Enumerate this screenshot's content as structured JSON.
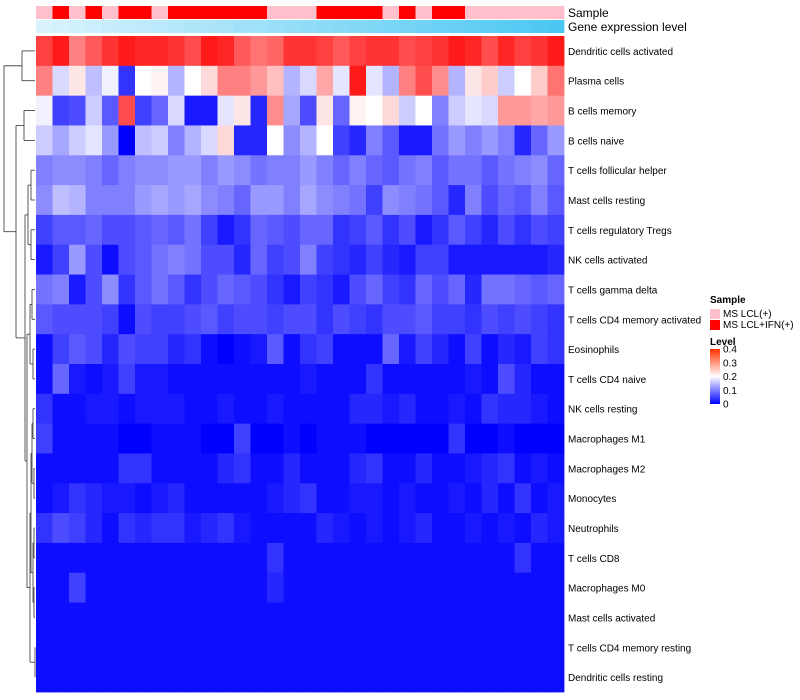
{
  "chart_data": {
    "type": "heatmap",
    "annotation_labels": {
      "sample": "Sample",
      "expression": "Gene expression level"
    },
    "rows": [
      "Dendritic cells activated",
      "Plasma cells",
      "B cells memory",
      "B cells naive",
      "T cells follicular helper",
      "Mast cells resting",
      "T cells regulatory  Tregs",
      "NK cells activated",
      "T cells gamma delta",
      "T cells CD4 memory activated",
      "Eosinophils",
      "T cells CD4 naive",
      "NK cells resting",
      "Macrophages M1",
      "Macrophages M2",
      "Monocytes",
      "Neutrophils",
      "T cells CD8",
      "Macrophages M0",
      "Mast cells activated",
      "T cells CD4 memory resting",
      "Dendritic cells resting"
    ],
    "sample_groups": [
      0,
      1,
      0,
      1,
      0,
      1,
      1,
      0,
      1,
      1,
      1,
      1,
      1,
      1,
      0,
      0,
      0,
      1,
      1,
      1,
      1,
      0,
      1,
      0,
      1,
      1,
      0,
      0,
      0,
      0,
      0,
      0
    ],
    "values": [
      [
        0.35,
        0.38,
        0.3,
        0.33,
        0.36,
        0.38,
        0.37,
        0.37,
        0.36,
        0.34,
        0.38,
        0.37,
        0.33,
        0.31,
        0.32,
        0.36,
        0.36,
        0.35,
        0.33,
        0.35,
        0.36,
        0.36,
        0.34,
        0.35,
        0.36,
        0.38,
        0.37,
        0.34,
        0.37,
        0.35,
        0.36,
        0.38
      ],
      [
        0.3,
        0.17,
        0.22,
        0.15,
        0.19,
        0.04,
        0.2,
        0.21,
        0.14,
        0.2,
        0.23,
        0.3,
        0.3,
        0.28,
        0.25,
        0.14,
        0.17,
        0.27,
        0.18,
        0.38,
        0.18,
        0.14,
        0.3,
        0.34,
        0.29,
        0.14,
        0.22,
        0.24,
        0.16,
        0.2,
        0.24,
        0.31
      ],
      [
        0.19,
        0.05,
        0.06,
        0.16,
        0.07,
        0.34,
        0.05,
        0.08,
        0.17,
        0.02,
        0.02,
        0.18,
        0.22,
        0.03,
        0.29,
        0.13,
        0.06,
        0.22,
        0.08,
        0.21,
        0.2,
        0.23,
        0.16,
        0.2,
        0.1,
        0.16,
        0.18,
        0.17,
        0.28,
        0.28,
        0.27,
        0.28
      ],
      [
        0.16,
        0.13,
        0.16,
        0.18,
        0.12,
        0.0,
        0.15,
        0.16,
        0.1,
        0.14,
        0.17,
        0.23,
        0.03,
        0.03,
        0.2,
        0.11,
        0.14,
        0.2,
        0.05,
        0.03,
        0.1,
        0.07,
        0.02,
        0.02,
        0.09,
        0.12,
        0.1,
        0.12,
        0.1,
        0.03,
        0.08,
        0.12
      ],
      [
        0.1,
        0.11,
        0.11,
        0.1,
        0.08,
        0.1,
        0.11,
        0.11,
        0.12,
        0.12,
        0.1,
        0.12,
        0.11,
        0.09,
        0.1,
        0.1,
        0.12,
        0.1,
        0.08,
        0.1,
        0.08,
        0.07,
        0.09,
        0.1,
        0.07,
        0.09,
        0.09,
        0.07,
        0.09,
        0.1,
        0.11,
        0.08
      ],
      [
        0.11,
        0.15,
        0.14,
        0.1,
        0.1,
        0.1,
        0.12,
        0.13,
        0.12,
        0.13,
        0.11,
        0.1,
        0.08,
        0.12,
        0.12,
        0.1,
        0.13,
        0.11,
        0.1,
        0.09,
        0.05,
        0.11,
        0.1,
        0.09,
        0.07,
        0.03,
        0.1,
        0.06,
        0.08,
        0.07,
        0.1,
        0.07
      ],
      [
        0.05,
        0.07,
        0.07,
        0.08,
        0.06,
        0.06,
        0.07,
        0.08,
        0.07,
        0.09,
        0.05,
        0.02,
        0.04,
        0.08,
        0.07,
        0.06,
        0.08,
        0.08,
        0.04,
        0.05,
        0.07,
        0.04,
        0.06,
        0.02,
        0.04,
        0.07,
        0.05,
        0.03,
        0.06,
        0.04,
        0.06,
        0.05
      ],
      [
        0.02,
        0.05,
        0.12,
        0.06,
        0.01,
        0.06,
        0.07,
        0.09,
        0.1,
        0.09,
        0.06,
        0.06,
        0.03,
        0.08,
        0.05,
        0.06,
        0.1,
        0.05,
        0.04,
        0.03,
        0.05,
        0.03,
        0.02,
        0.05,
        0.05,
        0.02,
        0.02,
        0.02,
        0.02,
        0.02,
        0.02,
        0.03
      ],
      [
        0.09,
        0.1,
        0.02,
        0.06,
        0.11,
        0.04,
        0.07,
        0.09,
        0.07,
        0.04,
        0.06,
        0.08,
        0.07,
        0.06,
        0.04,
        0.02,
        0.05,
        0.04,
        0.02,
        0.06,
        0.08,
        0.05,
        0.04,
        0.08,
        0.06,
        0.08,
        0.03,
        0.09,
        0.09,
        0.08,
        0.07,
        0.08
      ],
      [
        0.07,
        0.06,
        0.06,
        0.06,
        0.05,
        0.01,
        0.06,
        0.05,
        0.05,
        0.06,
        0.07,
        0.05,
        0.06,
        0.06,
        0.05,
        0.06,
        0.06,
        0.04,
        0.06,
        0.05,
        0.04,
        0.06,
        0.06,
        0.07,
        0.05,
        0.05,
        0.04,
        0.06,
        0.05,
        0.06,
        0.05,
        0.04
      ],
      [
        0.01,
        0.05,
        0.07,
        0.06,
        0.03,
        0.06,
        0.05,
        0.05,
        0.03,
        0.04,
        0.01,
        0.0,
        0.01,
        0.02,
        0.07,
        0.01,
        0.04,
        0.05,
        0.01,
        0.01,
        0.01,
        0.08,
        0.02,
        0.05,
        0.03,
        0.01,
        0.05,
        0.01,
        0.03,
        0.02,
        0.05,
        0.04
      ],
      [
        0.01,
        0.08,
        0.02,
        0.01,
        0.02,
        0.05,
        0.02,
        0.02,
        0.01,
        0.01,
        0.01,
        0.01,
        0.01,
        0.01,
        0.01,
        0.01,
        0.02,
        0.01,
        0.01,
        0.01,
        0.04,
        0.01,
        0.01,
        0.01,
        0.01,
        0.01,
        0.02,
        0.01,
        0.06,
        0.03,
        0.01,
        0.01
      ],
      [
        0.04,
        0.01,
        0.01,
        0.02,
        0.02,
        0.01,
        0.02,
        0.02,
        0.02,
        0.01,
        0.01,
        0.02,
        0.01,
        0.01,
        0.02,
        0.01,
        0.01,
        0.01,
        0.01,
        0.03,
        0.03,
        0.02,
        0.03,
        0.01,
        0.01,
        0.02,
        0.01,
        0.04,
        0.03,
        0.03,
        0.02,
        0.01
      ],
      [
        0.05,
        0.01,
        0.01,
        0.01,
        0.01,
        0.0,
        0.0,
        0.01,
        0.01,
        0.01,
        0.0,
        0.0,
        0.05,
        0.0,
        0.0,
        0.01,
        0.0,
        0.01,
        0.01,
        0.01,
        0.0,
        0.0,
        0.0,
        0.0,
        0.0,
        0.04,
        0.0,
        0.0,
        0.01,
        0.0,
        0.0,
        0.0
      ],
      [
        0.01,
        0.01,
        0.01,
        0.01,
        0.01,
        0.04,
        0.04,
        0.01,
        0.01,
        0.01,
        0.01,
        0.03,
        0.04,
        0.01,
        0.01,
        0.03,
        0.01,
        0.01,
        0.01,
        0.03,
        0.04,
        0.01,
        0.01,
        0.03,
        0.01,
        0.01,
        0.02,
        0.03,
        0.04,
        0.01,
        0.02,
        0.01
      ],
      [
        0.01,
        0.02,
        0.04,
        0.03,
        0.02,
        0.02,
        0.01,
        0.02,
        0.03,
        0.01,
        0.01,
        0.01,
        0.01,
        0.01,
        0.02,
        0.03,
        0.04,
        0.01,
        0.01,
        0.02,
        0.02,
        0.01,
        0.02,
        0.01,
        0.01,
        0.02,
        0.01,
        0.03,
        0.01,
        0.04,
        0.01,
        0.02
      ],
      [
        0.04,
        0.06,
        0.05,
        0.03,
        0.01,
        0.04,
        0.03,
        0.04,
        0.04,
        0.02,
        0.03,
        0.04,
        0.02,
        0.01,
        0.01,
        0.01,
        0.01,
        0.03,
        0.02,
        0.01,
        0.02,
        0.01,
        0.02,
        0.03,
        0.01,
        0.01,
        0.02,
        0.01,
        0.02,
        0.01,
        0.03,
        0.02
      ],
      [
        0.01,
        0.01,
        0.01,
        0.01,
        0.01,
        0.01,
        0.01,
        0.01,
        0.01,
        0.01,
        0.01,
        0.01,
        0.01,
        0.01,
        0.04,
        0.01,
        0.01,
        0.01,
        0.01,
        0.01,
        0.01,
        0.01,
        0.01,
        0.01,
        0.01,
        0.01,
        0.01,
        0.01,
        0.01,
        0.04,
        0.01,
        0.01
      ],
      [
        0.01,
        0.01,
        0.05,
        0.01,
        0.01,
        0.01,
        0.01,
        0.01,
        0.01,
        0.01,
        0.01,
        0.01,
        0.01,
        0.01,
        0.03,
        0.01,
        0.01,
        0.01,
        0.01,
        0.01,
        0.01,
        0.01,
        0.01,
        0.01,
        0.01,
        0.01,
        0.01,
        0.01,
        0.01,
        0.01,
        0.01,
        0.01
      ],
      [
        0.01,
        0.01,
        0.01,
        0.01,
        0.01,
        0.01,
        0.01,
        0.01,
        0.01,
        0.01,
        0.01,
        0.01,
        0.01,
        0.01,
        0.01,
        0.01,
        0.01,
        0.01,
        0.01,
        0.01,
        0.01,
        0.01,
        0.01,
        0.01,
        0.01,
        0.01,
        0.01,
        0.01,
        0.01,
        0.01,
        0.01,
        0.01
      ],
      [
        0.01,
        0.01,
        0.01,
        0.01,
        0.01,
        0.01,
        0.01,
        0.01,
        0.01,
        0.01,
        0.01,
        0.01,
        0.01,
        0.01,
        0.01,
        0.01,
        0.01,
        0.01,
        0.01,
        0.01,
        0.01,
        0.01,
        0.01,
        0.01,
        0.01,
        0.01,
        0.01,
        0.01,
        0.01,
        0.01,
        0.01,
        0.01
      ],
      [
        0.01,
        0.01,
        0.01,
        0.01,
        0.01,
        0.01,
        0.01,
        0.01,
        0.01,
        0.01,
        0.01,
        0.01,
        0.01,
        0.01,
        0.01,
        0.01,
        0.01,
        0.01,
        0.01,
        0.01,
        0.01,
        0.01,
        0.01,
        0.01,
        0.01,
        0.01,
        0.01,
        0.01,
        0.01,
        0.01,
        0.01,
        0.01
      ]
    ],
    "legend": {
      "sample_title": "Sample",
      "sample_items": [
        {
          "label": "MS LCL(+)",
          "color": "#FFC0CB"
        },
        {
          "label": "MS LCL+IFN(+)",
          "color": "#FF0000"
        }
      ],
      "level_title": "Level",
      "level_ticks": [
        "0.4",
        "0.3",
        "0.2",
        "0.1",
        "0"
      ],
      "level_tick_values": [
        0.4,
        0.3,
        0.2,
        0.1,
        0
      ],
      "range": [
        0,
        0.4
      ]
    },
    "colors": {
      "low": "#0000FF",
      "mid": "#FFFFFF",
      "high": "#FF0000",
      "expression_start": "#D9F3FD",
      "expression_end": "#4CC7F1"
    }
  }
}
